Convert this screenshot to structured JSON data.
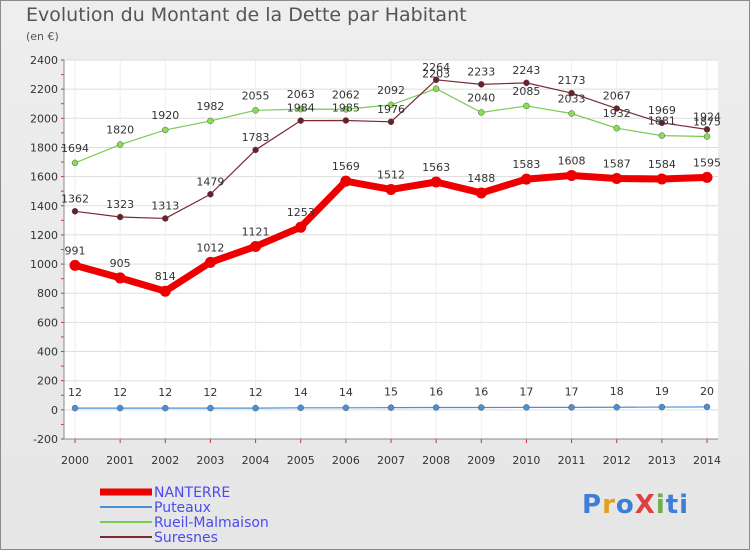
{
  "title": "Evolution du Montant de la Dette par Habitant",
  "unit": "(en €)",
  "logo": "ProXiti",
  "chart_data": {
    "type": "line",
    "title": "Evolution du Montant de la Dette par Habitant",
    "ylabel": "(en €)",
    "x": [
      "2000",
      "2001",
      "2002",
      "2003",
      "2004",
      "2005",
      "2006",
      "2007",
      "2008",
      "2009",
      "2010",
      "2011",
      "2012",
      "2013",
      "2014"
    ],
    "ylim": [
      -200,
      2400
    ],
    "yticks": [
      -200,
      0,
      200,
      400,
      600,
      800,
      1000,
      1200,
      1400,
      1600,
      1800,
      2000,
      2200,
      2400
    ],
    "grid": true,
    "legend_position": "bottom-left",
    "series": [
      {
        "name": "NANTERRE",
        "color": "#ee0000",
        "values": [
          991,
          905,
          814,
          1012,
          1121,
          1253,
          1569,
          1512,
          1563,
          1488,
          1583,
          1608,
          1587,
          1584,
          1595
        ]
      },
      {
        "name": "Puteaux",
        "color": "#4a90d9",
        "values": [
          12,
          12,
          12,
          12,
          12,
          14,
          14,
          15,
          16,
          16,
          17,
          17,
          18,
          19,
          20
        ]
      },
      {
        "name": "Rueil-Malmaison",
        "color": "#77cc55",
        "values": [
          1694,
          1820,
          1920,
          1982,
          2055,
          2063,
          2062,
          2092,
          2203,
          2040,
          2085,
          2033,
          1932,
          1881,
          1875
        ]
      },
      {
        "name": "Suresnes",
        "color": "#7a2a35",
        "values": [
          1362,
          1323,
          1313,
          1479,
          1783,
          1984,
          1985,
          1976,
          2264,
          2233,
          2243,
          2173,
          2067,
          1969,
          1924
        ]
      }
    ]
  }
}
